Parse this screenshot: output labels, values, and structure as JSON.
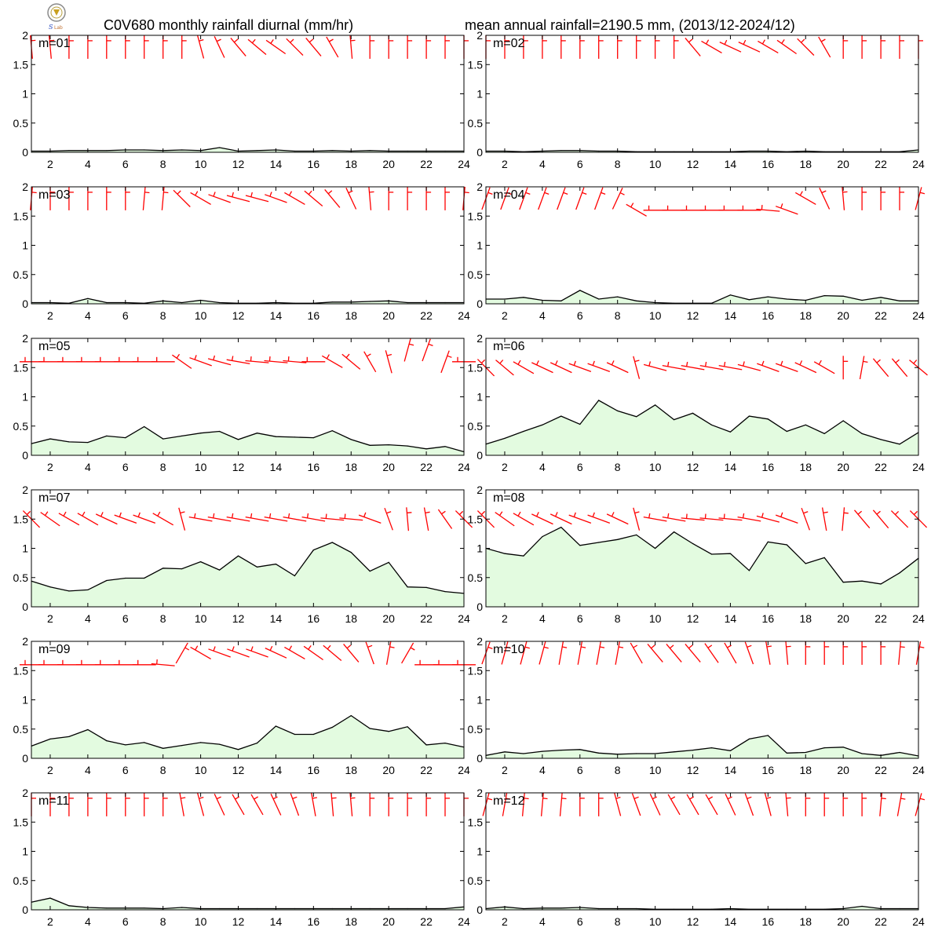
{
  "header": {
    "title_left": "C0V680 monthly rainfall diurnal (mm/hr)",
    "title_right": "mean annual rainfall=2190.5 mm, (2013/12-2024/12)"
  },
  "colors": {
    "line": "#000000",
    "fill": "#e3fbe0",
    "barb": "#ff0000",
    "axis": "#000000"
  },
  "chart_data": {
    "type": "area",
    "x": [
      1,
      2,
      3,
      4,
      5,
      6,
      7,
      8,
      9,
      10,
      11,
      12,
      13,
      14,
      15,
      16,
      17,
      18,
      19,
      20,
      21,
      22,
      23,
      24
    ],
    "xlim": [
      1,
      24
    ],
    "ylim": [
      0,
      2
    ],
    "x_ticks": [
      "2",
      "4",
      "6",
      "8",
      "10",
      "12",
      "14",
      "16",
      "18",
      "20",
      "22",
      "24"
    ],
    "y_ticks": [
      "0",
      "0.5",
      "1",
      "1.5",
      "2"
    ],
    "grid": false,
    "panels": [
      {
        "label": "m=01",
        "values": [
          0.02,
          0.02,
          0.03,
          0.03,
          0.03,
          0.04,
          0.04,
          0.03,
          0.04,
          0.03,
          0.08,
          0.02,
          0.03,
          0.04,
          0.02,
          0.02,
          0.03,
          0.02,
          0.03,
          0.02,
          0.02,
          0.02,
          0.02,
          0.02
        ],
        "wind_dir": [
          355,
          355,
          0,
          0,
          0,
          0,
          0,
          0,
          0,
          345,
          335,
          320,
          310,
          305,
          315,
          320,
          330,
          355,
          0,
          0,
          0,
          0,
          0,
          0
        ],
        "wind_y": [
          1.8,
          1.8,
          1.8,
          1.8,
          1.8,
          1.8,
          1.8,
          1.8,
          1.8,
          1.8,
          1.8,
          1.8,
          1.8,
          1.8,
          1.8,
          1.8,
          1.8,
          1.8,
          1.8,
          1.8,
          1.8,
          1.8,
          1.8,
          1.8
        ]
      },
      {
        "label": "m=02",
        "values": [
          0.02,
          0.02,
          0.01,
          0.02,
          0.03,
          0.03,
          0.02,
          0.02,
          0.01,
          0.01,
          0.01,
          0.01,
          0.01,
          0.01,
          0.02,
          0.02,
          0.01,
          0.02,
          0.01,
          0.01,
          0.01,
          0.01,
          0.01,
          0.04
        ],
        "wind_dir": [
          0,
          0,
          0,
          0,
          0,
          0,
          0,
          0,
          0,
          0,
          0,
          320,
          300,
          295,
          295,
          300,
          305,
          315,
          330,
          0,
          0,
          0,
          0,
          0
        ],
        "wind_y": [
          1.8,
          1.8,
          1.8,
          1.8,
          1.8,
          1.8,
          1.8,
          1.8,
          1.8,
          1.8,
          1.8,
          1.8,
          1.8,
          1.8,
          1.8,
          1.8,
          1.8,
          1.8,
          1.8,
          1.8,
          1.8,
          1.8,
          1.8,
          1.8
        ]
      },
      {
        "label": "m=03",
        "values": [
          0.02,
          0.02,
          0.01,
          0.09,
          0.02,
          0.02,
          0.01,
          0.05,
          0.02,
          0.06,
          0.02,
          0.01,
          0.01,
          0.02,
          0.01,
          0.01,
          0.03,
          0.03,
          0.04,
          0.05,
          0.02,
          0.02,
          0.02,
          0.02
        ],
        "wind_dir": [
          5,
          0,
          0,
          0,
          0,
          0,
          5,
          5,
          315,
          300,
          290,
          285,
          285,
          290,
          300,
          310,
          320,
          335,
          355,
          0,
          0,
          0,
          0,
          5
        ],
        "wind_y": [
          1.8,
          1.8,
          1.8,
          1.8,
          1.8,
          1.8,
          1.8,
          1.8,
          1.8,
          1.8,
          1.8,
          1.8,
          1.8,
          1.8,
          1.8,
          1.8,
          1.8,
          1.8,
          1.8,
          1.8,
          1.8,
          1.8,
          1.8,
          1.8
        ]
      },
      {
        "label": "m=04",
        "values": [
          0.08,
          0.08,
          0.11,
          0.06,
          0.05,
          0.23,
          0.08,
          0.12,
          0.05,
          0.02,
          0.01,
          0.01,
          0.01,
          0.15,
          0.07,
          0.12,
          0.08,
          0.06,
          0.14,
          0.13,
          0.06,
          0.11,
          0.05,
          0.05
        ],
        "wind_dir": [
          20,
          20,
          20,
          20,
          20,
          20,
          20,
          25,
          300,
          270,
          270,
          270,
          270,
          270,
          270,
          275,
          290,
          300,
          335,
          355,
          0,
          0,
          0,
          15
        ],
        "wind_y": [
          1.8,
          1.8,
          1.8,
          1.8,
          1.8,
          1.8,
          1.8,
          1.8,
          1.6,
          1.6,
          1.6,
          1.6,
          1.6,
          1.6,
          1.6,
          1.6,
          1.6,
          1.8,
          1.8,
          1.8,
          1.8,
          1.8,
          1.8,
          1.8
        ]
      },
      {
        "label": "m=05",
        "values": [
          0.2,
          0.28,
          0.23,
          0.22,
          0.33,
          0.3,
          0.49,
          0.28,
          0.33,
          0.38,
          0.41,
          0.27,
          0.38,
          0.32,
          0.31,
          0.3,
          0.42,
          0.27,
          0.17,
          0.18,
          0.16,
          0.11,
          0.15,
          0.06
        ],
        "wind_dir": [
          270,
          270,
          270,
          270,
          270,
          270,
          270,
          270,
          305,
          290,
          285,
          280,
          275,
          275,
          275,
          270,
          300,
          310,
          330,
          345,
          15,
          20,
          20,
          270
        ],
        "wind_y": [
          1.6,
          1.6,
          1.6,
          1.6,
          1.6,
          1.6,
          1.6,
          1.6,
          1.6,
          1.6,
          1.6,
          1.6,
          1.6,
          1.6,
          1.6,
          1.6,
          1.6,
          1.6,
          1.6,
          1.6,
          1.8,
          1.8,
          1.6,
          1.6
        ]
      },
      {
        "label": "m=06",
        "values": [
          0.19,
          0.29,
          0.41,
          0.52,
          0.67,
          0.53,
          0.94,
          0.76,
          0.66,
          0.86,
          0.61,
          0.72,
          0.52,
          0.4,
          0.67,
          0.62,
          0.41,
          0.52,
          0.37,
          0.59,
          0.37,
          0.27,
          0.19,
          0.39
        ],
        "wind_dir": [
          315,
          310,
          300,
          295,
          295,
          290,
          290,
          295,
          345,
          285,
          280,
          280,
          280,
          280,
          285,
          290,
          290,
          295,
          300,
          0,
          10,
          320,
          320,
          310
        ],
        "wind_y": [
          1.5,
          1.5,
          1.5,
          1.5,
          1.5,
          1.5,
          1.5,
          1.5,
          1.5,
          1.5,
          1.5,
          1.5,
          1.5,
          1.5,
          1.5,
          1.5,
          1.5,
          1.5,
          1.5,
          1.5,
          1.5,
          1.5,
          1.5,
          1.5
        ]
      },
      {
        "label": "m=07",
        "values": [
          0.44,
          0.34,
          0.27,
          0.29,
          0.45,
          0.49,
          0.49,
          0.66,
          0.65,
          0.77,
          0.63,
          0.87,
          0.68,
          0.73,
          0.53,
          0.97,
          1.1,
          0.93,
          0.61,
          0.76,
          0.34,
          0.33,
          0.26,
          0.23
        ],
        "wind_dir": [
          315,
          305,
          300,
          300,
          295,
          290,
          290,
          300,
          345,
          280,
          280,
          280,
          280,
          280,
          280,
          280,
          275,
          275,
          290,
          340,
          355,
          350,
          325,
          315
        ],
        "wind_y": [
          1.5,
          1.5,
          1.5,
          1.5,
          1.5,
          1.5,
          1.5,
          1.5,
          1.5,
          1.5,
          1.5,
          1.5,
          1.5,
          1.5,
          1.5,
          1.5,
          1.5,
          1.5,
          1.5,
          1.5,
          1.5,
          1.5,
          1.5,
          1.5
        ]
      },
      {
        "label": "m=08",
        "values": [
          1.0,
          0.91,
          0.87,
          1.2,
          1.36,
          1.05,
          1.1,
          1.15,
          1.23,
          1.0,
          1.28,
          1.08,
          0.9,
          0.91,
          0.62,
          1.11,
          1.06,
          0.74,
          0.84,
          0.42,
          0.44,
          0.39,
          0.58,
          0.83
        ],
        "wind_dir": [
          315,
          305,
          300,
          295,
          295,
          290,
          290,
          295,
          345,
          280,
          280,
          275,
          275,
          275,
          280,
          285,
          290,
          340,
          350,
          5,
          320,
          320,
          315,
          315
        ],
        "wind_y": [
          1.5,
          1.5,
          1.5,
          1.5,
          1.5,
          1.5,
          1.5,
          1.5,
          1.5,
          1.5,
          1.5,
          1.5,
          1.5,
          1.5,
          1.5,
          1.5,
          1.5,
          1.5,
          1.5,
          1.5,
          1.5,
          1.5,
          1.5,
          1.5
        ]
      },
      {
        "label": "m=09",
        "values": [
          0.21,
          0.33,
          0.37,
          0.49,
          0.3,
          0.23,
          0.27,
          0.17,
          0.22,
          0.27,
          0.24,
          0.15,
          0.26,
          0.55,
          0.41,
          0.41,
          0.53,
          0.73,
          0.51,
          0.46,
          0.54,
          0.23,
          0.26,
          0.19
        ],
        "wind_dir": [
          270,
          270,
          270,
          270,
          270,
          270,
          270,
          275,
          30,
          300,
          290,
          290,
          290,
          295,
          300,
          305,
          310,
          320,
          340,
          10,
          30,
          270,
          270,
          270
        ],
        "wind_y": [
          1.6,
          1.6,
          1.6,
          1.6,
          1.6,
          1.6,
          1.6,
          1.6,
          1.8,
          1.8,
          1.8,
          1.8,
          1.8,
          1.8,
          1.8,
          1.8,
          1.8,
          1.8,
          1.8,
          1.8,
          1.8,
          1.6,
          1.6,
          1.6
        ]
      },
      {
        "label": "m=10",
        "values": [
          0.05,
          0.11,
          0.08,
          0.12,
          0.14,
          0.15,
          0.09,
          0.07,
          0.08,
          0.08,
          0.11,
          0.14,
          0.18,
          0.13,
          0.33,
          0.39,
          0.09,
          0.1,
          0.18,
          0.19,
          0.08,
          0.05,
          0.1,
          0.04
        ],
        "wind_dir": [
          20,
          15,
          15,
          15,
          10,
          10,
          10,
          10,
          330,
          320,
          320,
          320,
          325,
          330,
          340,
          350,
          355,
          0,
          0,
          0,
          0,
          0,
          5,
          10
        ],
        "wind_y": [
          1.8,
          1.8,
          1.8,
          1.8,
          1.8,
          1.8,
          1.8,
          1.8,
          1.8,
          1.8,
          1.8,
          1.8,
          1.8,
          1.8,
          1.8,
          1.8,
          1.8,
          1.8,
          1.8,
          1.8,
          1.8,
          1.8,
          1.8,
          1.8
        ]
      },
      {
        "label": "m=11",
        "values": [
          0.13,
          0.2,
          0.07,
          0.04,
          0.03,
          0.03,
          0.03,
          0.02,
          0.04,
          0.02,
          0.02,
          0.02,
          0.02,
          0.02,
          0.02,
          0.02,
          0.02,
          0.02,
          0.02,
          0.02,
          0.02,
          0.02,
          0.02,
          0.05
        ],
        "wind_dir": [
          0,
          0,
          0,
          0,
          0,
          0,
          0,
          0,
          350,
          345,
          335,
          330,
          330,
          335,
          340,
          350,
          355,
          355,
          0,
          0,
          0,
          0,
          0,
          0
        ],
        "wind_y": [
          1.8,
          1.8,
          1.8,
          1.8,
          1.8,
          1.8,
          1.8,
          1.8,
          1.8,
          1.8,
          1.8,
          1.8,
          1.8,
          1.8,
          1.8,
          1.8,
          1.8,
          1.8,
          1.8,
          1.8,
          1.8,
          1.8,
          1.8,
          1.8
        ]
      },
      {
        "label": "m=12",
        "values": [
          0.02,
          0.05,
          0.02,
          0.03,
          0.03,
          0.04,
          0.02,
          0.02,
          0.02,
          0.01,
          0.01,
          0.01,
          0.01,
          0.02,
          0.01,
          0.01,
          0.01,
          0.01,
          0.01,
          0.02,
          0.06,
          0.02,
          0.02,
          0.02
        ],
        "wind_dir": [
          15,
          10,
          5,
          5,
          5,
          0,
          0,
          345,
          340,
          335,
          330,
          330,
          330,
          335,
          340,
          345,
          355,
          0,
          0,
          0,
          0,
          5,
          10,
          15
        ],
        "wind_y": [
          1.8,
          1.8,
          1.8,
          1.8,
          1.8,
          1.8,
          1.8,
          1.8,
          1.8,
          1.8,
          1.8,
          1.8,
          1.8,
          1.8,
          1.8,
          1.8,
          1.8,
          1.8,
          1.8,
          1.8,
          1.8,
          1.8,
          1.8,
          1.8
        ]
      }
    ]
  }
}
